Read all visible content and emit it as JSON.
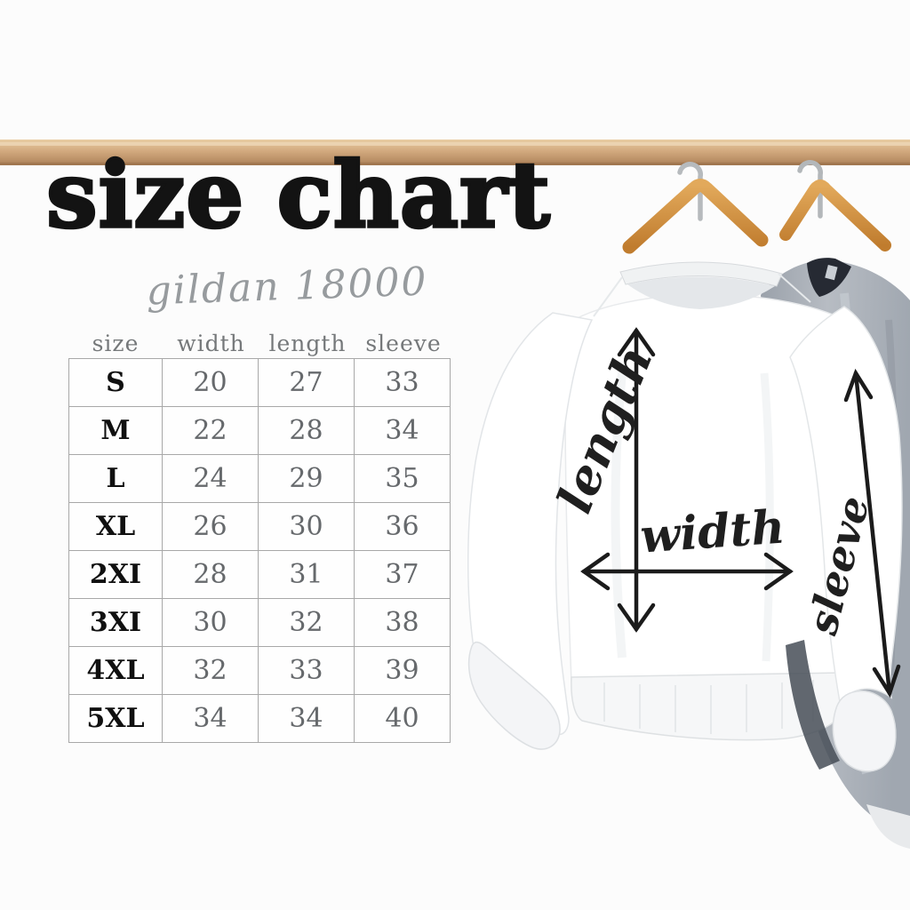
{
  "header": {
    "title": "size chart",
    "subtitle": "gildan 18000"
  },
  "size_table": {
    "columns": [
      "size",
      "width",
      "length",
      "sleeve"
    ],
    "rows": [
      {
        "size": "S",
        "width": "20",
        "length": "27",
        "sleeve": "33"
      },
      {
        "size": "M",
        "width": "22",
        "length": "28",
        "sleeve": "34"
      },
      {
        "size": "L",
        "width": "24",
        "length": "29",
        "sleeve": "35"
      },
      {
        "size": "XL",
        "width": "26",
        "length": "30",
        "sleeve": "36"
      },
      {
        "size": "2XI",
        "width": "28",
        "length": "31",
        "sleeve": "37"
      },
      {
        "size": "3XI",
        "width": "30",
        "length": "32",
        "sleeve": "38"
      },
      {
        "size": "4XL",
        "width": "32",
        "length": "33",
        "sleeve": "39"
      },
      {
        "size": "5XL",
        "width": "34",
        "length": "34",
        "sleeve": "40"
      }
    ]
  },
  "garment_diagram": {
    "labels": {
      "length": "length",
      "width": "width",
      "sleeve": "sleeve"
    },
    "colors": {
      "rod_wood": "#cfa77e",
      "hanger_wood": "#d3913f",
      "white_sweatshirt": "#ffffff",
      "gray_sweatshirt": "#a4abb4",
      "arrow": "#1b1b1b",
      "title_text": "#131313",
      "muted_text": "#75787a"
    }
  }
}
